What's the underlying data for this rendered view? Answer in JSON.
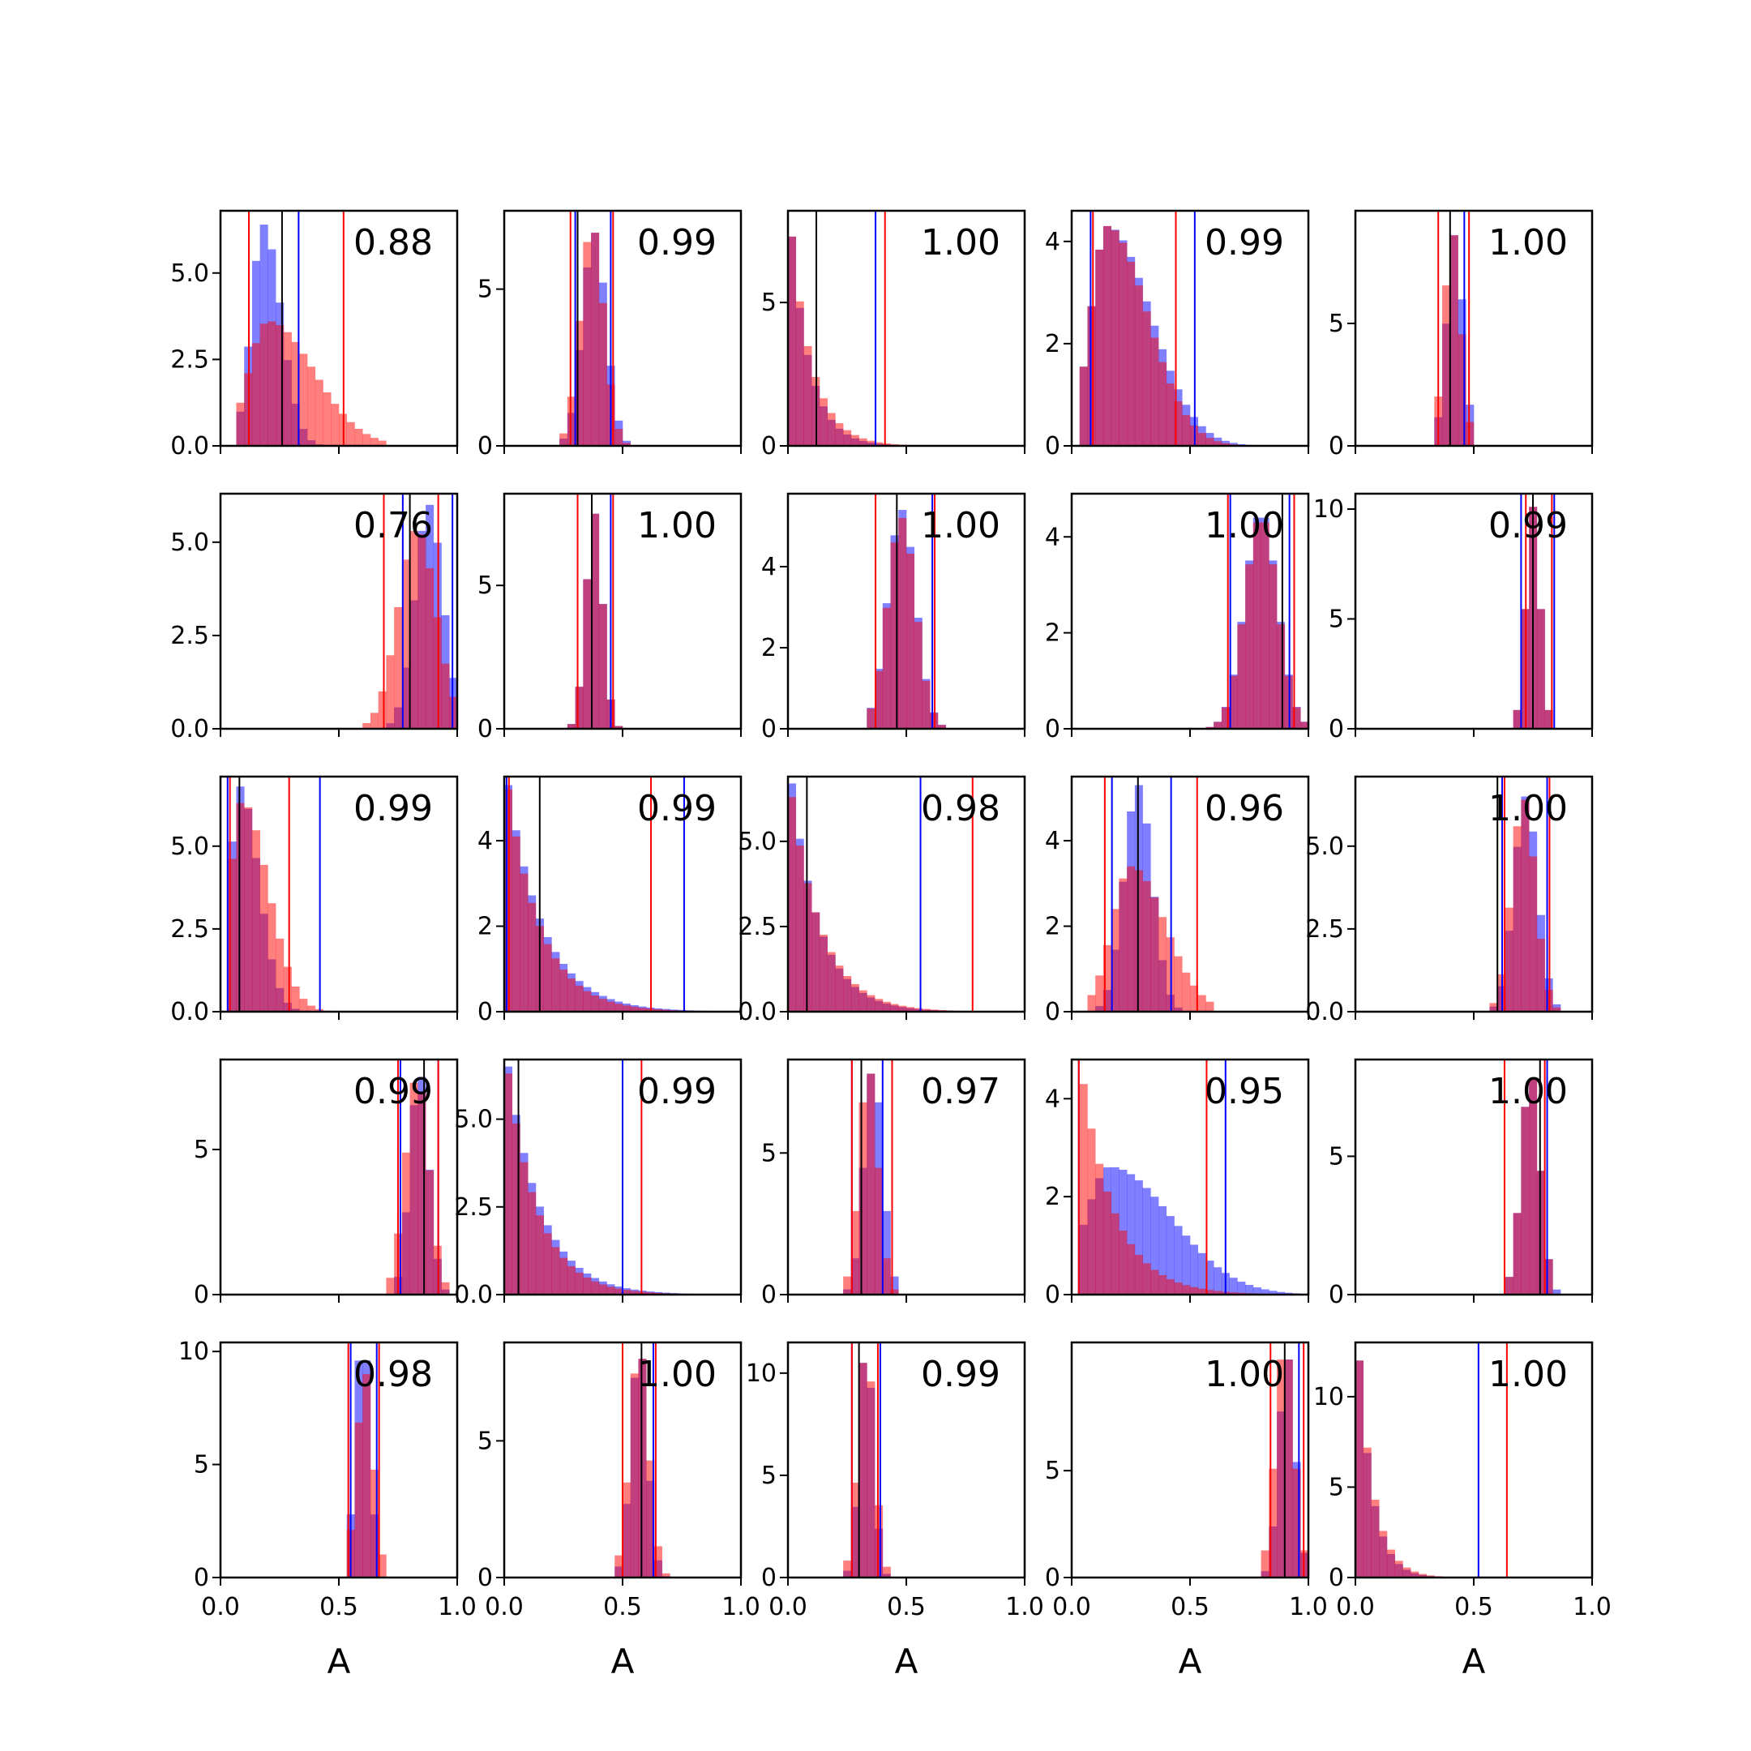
{
  "chart_data": {
    "type": "histogram-grid",
    "rows": 5,
    "cols": 5,
    "xlim": [
      0,
      1
    ],
    "xticks": [
      "0.0",
      "0.5",
      "1.0"
    ],
    "xlabel": "A",
    "colors": {
      "blue": "#0000ff",
      "red": "#ff0000",
      "black": "#000000",
      "blue_fill": "#7878f5",
      "red_fill": "#ff7a7a"
    },
    "panels": [
      {
        "annot": "0.88",
        "ymax": 6.8,
        "yticks": [
          "0.0",
          "2.5",
          "5.0"
        ],
        "ytick_vals": [
          0,
          2.5,
          5
        ],
        "blue": {
          "dist": "skew",
          "mu": 0.18,
          "sd": 0.05,
          "skew": 0.5,
          "lo": 0.08,
          "hi": 0.5,
          "peak": 6.4
        },
        "red": {
          "dist": "skew",
          "mu": 0.2,
          "sd": 0.08,
          "skew": 1.4,
          "lo": 0.06,
          "hi": 0.7,
          "peak": 3.6
        },
        "vlines": {
          "blue": [
            0.12,
            0.33
          ],
          "red": [
            0.12,
            0.52
          ],
          "black": [
            0.26
          ]
        }
      },
      {
        "annot": "0.99",
        "ymax": 7.5,
        "yticks": [
          "0",
          "5"
        ],
        "ytick_vals": [
          0,
          5
        ],
        "blue": {
          "dist": "normal",
          "mu": 0.38,
          "sd": 0.05,
          "lo": 0.22,
          "hi": 0.6,
          "peak": 6.8
        },
        "red": {
          "dist": "normal",
          "mu": 0.37,
          "sd": 0.05,
          "lo": 0.22,
          "hi": 0.55,
          "peak": 6.8
        },
        "vlines": {
          "blue": [
            0.3,
            0.45
          ],
          "red": [
            0.28,
            0.46
          ],
          "black": [
            0.31
          ]
        }
      },
      {
        "annot": "1.00",
        "ymax": 8.2,
        "yticks": [
          "0",
          "5"
        ],
        "ytick_vals": [
          0,
          5
        ],
        "blue": {
          "dist": "exp",
          "scale": 0.08,
          "lo": 0.0,
          "hi": 0.75,
          "peak": 7.3
        },
        "red": {
          "dist": "exp",
          "scale": 0.09,
          "lo": 0.0,
          "hi": 0.8,
          "peak": 7.3
        },
        "vlines": {
          "blue": [
            0.37
          ],
          "red": [
            0.41
          ],
          "black": [
            0.12
          ]
        }
      },
      {
        "annot": "0.99",
        "ymax": 4.6,
        "yticks": [
          "0",
          "2",
          "4"
        ],
        "ytick_vals": [
          0,
          2,
          4
        ],
        "blue": {
          "dist": "skew",
          "mu": 0.15,
          "sd": 0.07,
          "skew": 1.6,
          "lo": 0.05,
          "hi": 0.95,
          "peak": 4.3
        },
        "red": {
          "dist": "skew",
          "mu": 0.15,
          "sd": 0.07,
          "skew": 1.4,
          "lo": 0.05,
          "hi": 0.8,
          "peak": 4.3
        },
        "vlines": {
          "blue": [
            0.08,
            0.52
          ],
          "red": [
            0.09,
            0.44
          ],
          "black": []
        }
      },
      {
        "annot": "1.00",
        "ymax": 9.6,
        "yticks": [
          "0",
          "5"
        ],
        "ytick_vals": [
          0,
          5
        ],
        "blue": {
          "dist": "normal",
          "mu": 0.42,
          "sd": 0.035,
          "lo": 0.34,
          "hi": 0.5,
          "peak": 8.6
        },
        "red": {
          "dist": "normal",
          "mu": 0.41,
          "sd": 0.035,
          "lo": 0.34,
          "hi": 0.5,
          "peak": 8.6
        },
        "vlines": {
          "blue": [
            0.46
          ],
          "red": [
            0.35,
            0.48
          ],
          "black": [
            0.4
          ]
        }
      },
      {
        "annot": "0.76",
        "ymax": 6.3,
        "yticks": [
          "0.0",
          "2.5",
          "5.0"
        ],
        "ytick_vals": [
          0,
          2.5,
          5
        ],
        "blue": {
          "dist": "normal",
          "mu": 0.88,
          "sd": 0.06,
          "lo": 0.7,
          "hi": 1.0,
          "peak": 6.0
        },
        "red": {
          "dist": "normal",
          "mu": 0.83,
          "sd": 0.08,
          "lo": 0.6,
          "hi": 1.0,
          "peak": 5.3
        },
        "vlines": {
          "blue": [
            0.77,
            0.98
          ],
          "red": [
            0.69,
            0.92
          ],
          "black": [
            0.8
          ]
        }
      },
      {
        "annot": "1.00",
        "ymax": 8.2,
        "yticks": [
          "0",
          "5"
        ],
        "ytick_vals": [
          0,
          5
        ],
        "blue": {
          "dist": "normal",
          "mu": 0.38,
          "sd": 0.035,
          "lo": 0.26,
          "hi": 0.5,
          "peak": 7.5
        },
        "red": {
          "dist": "normal",
          "mu": 0.38,
          "sd": 0.035,
          "lo": 0.26,
          "hi": 0.52,
          "peak": 7.5
        },
        "vlines": {
          "blue": [
            0.31,
            0.45
          ],
          "red": [
            0.31,
            0.46
          ],
          "black": [
            0.37
          ]
        }
      },
      {
        "annot": "1.00",
        "ymax": 5.8,
        "yticks": [
          "0",
          "2",
          "4"
        ],
        "ytick_vals": [
          0,
          2,
          4
        ],
        "blue": {
          "dist": "normal",
          "mu": 0.48,
          "sd": 0.06,
          "lo": 0.33,
          "hi": 0.7,
          "peak": 5.4
        },
        "red": {
          "dist": "normal",
          "mu": 0.48,
          "sd": 0.06,
          "lo": 0.33,
          "hi": 0.72,
          "peak": 5.2
        },
        "vlines": {
          "blue": [
            0.37,
            0.61
          ],
          "red": [
            0.37,
            0.62
          ],
          "black": [
            0.46
          ]
        }
      },
      {
        "annot": "1.00",
        "ymax": 4.9,
        "yticks": [
          "0",
          "2",
          "4"
        ],
        "ytick_vals": [
          0,
          2,
          4
        ],
        "blue": {
          "dist": "normal",
          "mu": 0.8,
          "sd": 0.07,
          "lo": 0.55,
          "hi": 1.0,
          "peak": 4.4
        },
        "red": {
          "dist": "normal",
          "mu": 0.8,
          "sd": 0.07,
          "lo": 0.55,
          "hi": 1.0,
          "peak": 4.3
        },
        "vlines": {
          "blue": [
            0.67,
            0.92
          ],
          "red": [
            0.66,
            0.94
          ],
          "black": [
            0.89
          ]
        }
      },
      {
        "annot": "0.99",
        "ymax": 10.7,
        "yticks": [
          "0",
          "5",
          "10"
        ],
        "ytick_vals": [
          0,
          5,
          10
        ],
        "blue": {
          "dist": "normal",
          "mu": 0.75,
          "sd": 0.03,
          "lo": 0.66,
          "hi": 0.86,
          "peak": 10.1
        },
        "red": {
          "dist": "normal",
          "mu": 0.75,
          "sd": 0.03,
          "lo": 0.66,
          "hi": 0.86,
          "peak": 10.1
        },
        "vlines": {
          "blue": [
            0.7,
            0.84
          ],
          "red": [
            0.72,
            0.83
          ],
          "black": [
            0.75
          ]
        }
      },
      {
        "annot": "0.99",
        "ymax": 7.1,
        "yticks": [
          "0.0",
          "2.5",
          "5.0"
        ],
        "ytick_vals": [
          0,
          2.5,
          5
        ],
        "blue": {
          "dist": "skew",
          "mu": 0.08,
          "sd": 0.04,
          "skew": 1.0,
          "lo": 0.02,
          "hi": 1.0,
          "peak": 6.8
        },
        "red": {
          "dist": "skew",
          "mu": 0.09,
          "sd": 0.05,
          "skew": 1.2,
          "lo": 0.02,
          "hi": 0.5,
          "peak": 6.3
        },
        "vlines": {
          "blue": [
            0.03,
            0.42
          ],
          "red": [
            0.04,
            0.29
          ],
          "black": [
            0.08
          ]
        }
      },
      {
        "annot": "0.99",
        "ymax": 5.5,
        "yticks": [
          "0",
          "2",
          "4"
        ],
        "ytick_vals": [
          0,
          2,
          4
        ],
        "blue": {
          "dist": "exp",
          "scale": 0.15,
          "lo": 0.0,
          "hi": 1.0,
          "peak": 5.3
        },
        "red": {
          "dist": "exp",
          "scale": 0.14,
          "lo": 0.0,
          "hi": 1.0,
          "peak": 5.2
        },
        "vlines": {
          "blue": [
            0.01,
            0.76
          ],
          "red": [
            0.02,
            0.62
          ],
          "black": [
            0.15
          ]
        }
      },
      {
        "annot": "0.98",
        "ymax": 6.9,
        "yticks": [
          "0.0",
          "2.5",
          "5.0"
        ],
        "ytick_vals": [
          0,
          2.5,
          5
        ],
        "blue": {
          "dist": "exp",
          "scale": 0.12,
          "lo": 0.0,
          "hi": 1.0,
          "peak": 6.7
        },
        "red": {
          "dist": "exp",
          "scale": 0.13,
          "lo": 0.0,
          "hi": 1.0,
          "peak": 6.3
        },
        "vlines": {
          "blue": [
            0.56
          ],
          "red": [
            0.78
          ],
          "black": [
            0.08
          ]
        }
      },
      {
        "annot": "0.96",
        "ymax": 5.5,
        "yticks": [
          "0",
          "2",
          "4"
        ],
        "ytick_vals": [
          0,
          2,
          4
        ],
        "blue": {
          "dist": "normal",
          "mu": 0.28,
          "sd": 0.06,
          "lo": 0.1,
          "hi": 0.55,
          "peak": 5.3
        },
        "red": {
          "dist": "skew",
          "mu": 0.25,
          "sd": 0.08,
          "skew": 0.8,
          "lo": 0.08,
          "hi": 0.6,
          "peak": 3.4
        },
        "vlines": {
          "blue": [
            0.17,
            0.42
          ],
          "red": [
            0.14,
            0.53
          ],
          "black": [
            0.28
          ]
        }
      },
      {
        "annot": "1.00",
        "ymax": 7.1,
        "yticks": [
          "0.0",
          "2.5",
          "5.0"
        ],
        "ytick_vals": [
          0,
          2.5,
          5
        ],
        "blue": {
          "dist": "normal",
          "mu": 0.72,
          "sd": 0.05,
          "lo": 0.58,
          "hi": 0.86,
          "peak": 6.5
        },
        "red": {
          "dist": "normal",
          "mu": 0.71,
          "sd": 0.05,
          "lo": 0.58,
          "hi": 0.86,
          "peak": 6.4
        },
        "vlines": {
          "blue": [
            0.62,
            0.81
          ],
          "red": [
            0.63,
            0.82
          ],
          "black": [
            0.6
          ]
        }
      },
      {
        "annot": "0.99",
        "ymax": 8.1,
        "yticks": [
          "0",
          "5"
        ],
        "ytick_vals": [
          0,
          5
        ],
        "blue": {
          "dist": "normal",
          "mu": 0.84,
          "sd": 0.04,
          "lo": 0.74,
          "hi": 0.96,
          "peak": 7.5
        },
        "red": {
          "dist": "normal",
          "mu": 0.83,
          "sd": 0.05,
          "lo": 0.7,
          "hi": 0.96,
          "peak": 7.3
        },
        "vlines": {
          "blue": [
            0.76,
            0.92
          ],
          "red": [
            0.75,
            0.92
          ],
          "black": [
            0.86
          ]
        }
      },
      {
        "annot": "0.99",
        "ymax": 6.7,
        "yticks": [
          "0.0",
          "2.5",
          "5.0"
        ],
        "ytick_vals": [
          0,
          2.5,
          5
        ],
        "blue": {
          "dist": "exp",
          "scale": 0.14,
          "lo": 0.0,
          "hi": 0.9,
          "peak": 6.5
        },
        "red": {
          "dist": "exp",
          "scale": 0.13,
          "lo": 0.0,
          "hi": 1.0,
          "peak": 6.3
        },
        "vlines": {
          "blue": [
            0.5
          ],
          "red": [
            0.58
          ],
          "black": [
            0.06
          ]
        }
      },
      {
        "annot": "0.97",
        "ymax": 8.3,
        "yticks": [
          "0",
          "5"
        ],
        "ytick_vals": [
          0,
          5
        ],
        "blue": {
          "dist": "normal",
          "mu": 0.36,
          "sd": 0.04,
          "lo": 0.24,
          "hi": 0.48,
          "peak": 7.8
        },
        "red": {
          "dist": "normal",
          "mu": 0.34,
          "sd": 0.04,
          "lo": 0.22,
          "hi": 0.5,
          "peak": 7.8
        },
        "vlines": {
          "blue": [
            0.27,
            0.4
          ],
          "red": [
            0.27,
            0.44
          ],
          "black": [
            0.31
          ]
        }
      },
      {
        "annot": "0.95",
        "ymax": 4.8,
        "yticks": [
          "0",
          "2",
          "4"
        ],
        "ytick_vals": [
          0,
          2,
          4
        ],
        "blue": {
          "dist": "skew",
          "mu": 0.16,
          "sd": 0.1,
          "skew": 1.6,
          "lo": 0.02,
          "hi": 1.0,
          "peak": 2.6
        },
        "red": {
          "dist": "exp",
          "scale": 0.14,
          "lo": 0.02,
          "hi": 0.9,
          "peak": 4.3
        },
        "vlines": {
          "blue": [
            0.03,
            0.65
          ],
          "red": [
            0.03,
            0.57
          ],
          "black": []
        }
      },
      {
        "annot": "1.00",
        "ymax": 8.5,
        "yticks": [
          "0",
          "5"
        ],
        "ytick_vals": [
          0,
          5
        ],
        "blue": {
          "dist": "normal",
          "mu": 0.74,
          "sd": 0.04,
          "lo": 0.62,
          "hi": 0.86,
          "peak": 7.8
        },
        "red": {
          "dist": "normal",
          "mu": 0.74,
          "sd": 0.04,
          "lo": 0.62,
          "hi": 0.84,
          "peak": 7.8
        },
        "vlines": {
          "blue": [
            0.81
          ],
          "red": [
            0.63,
            0.8
          ],
          "black": [
            0.78
          ]
        }
      },
      {
        "annot": "0.98",
        "ymax": 10.4,
        "yticks": [
          "0",
          "5",
          "10"
        ],
        "ytick_vals": [
          0,
          5,
          10
        ],
        "blue": {
          "dist": "normal",
          "mu": 0.6,
          "sd": 0.03,
          "lo": 0.52,
          "hi": 0.68,
          "peak": 9.6
        },
        "red": {
          "dist": "normal",
          "mu": 0.61,
          "sd": 0.035,
          "lo": 0.52,
          "hi": 0.7,
          "peak": 9.0
        },
        "vlines": {
          "blue": [
            0.55,
            0.66
          ],
          "red": [
            0.54,
            0.67
          ],
          "black": []
        }
      },
      {
        "annot": "1.00",
        "ymax": 8.6,
        "yticks": [
          "0",
          "5"
        ],
        "ytick_vals": [
          0,
          5
        ],
        "blue": {
          "dist": "normal",
          "mu": 0.57,
          "sd": 0.035,
          "lo": 0.46,
          "hi": 0.7,
          "peak": 8.0
        },
        "red": {
          "dist": "normal",
          "mu": 0.57,
          "sd": 0.04,
          "lo": 0.46,
          "hi": 0.7,
          "peak": 8.0
        },
        "vlines": {
          "blue": [
            0.5,
            0.63
          ],
          "red": [
            0.5,
            0.64
          ],
          "black": [
            0.58
          ]
        }
      },
      {
        "annot": "0.99",
        "ymax": 11.5,
        "yticks": [
          "0",
          "5",
          "10"
        ],
        "ytick_vals": [
          0,
          5,
          10
        ],
        "blue": {
          "dist": "normal",
          "mu": 0.33,
          "sd": 0.03,
          "lo": 0.24,
          "hi": 0.44,
          "peak": 10.5
        },
        "red": {
          "dist": "normal",
          "mu": 0.33,
          "sd": 0.035,
          "lo": 0.24,
          "hi": 0.44,
          "peak": 10.5
        },
        "vlines": {
          "blue": [
            0.27,
            0.39
          ],
          "red": [
            0.27,
            0.38
          ],
          "black": [
            0.3
          ]
        }
      },
      {
        "annot": "1.00",
        "ymax": 11.0,
        "yticks": [
          "0",
          "5"
        ],
        "ytick_vals": [
          0,
          5
        ],
        "blue": {
          "dist": "normal",
          "mu": 0.91,
          "sd": 0.035,
          "lo": 0.8,
          "hi": 1.0,
          "peak": 10.2
        },
        "red": {
          "dist": "normal",
          "mu": 0.9,
          "sd": 0.04,
          "lo": 0.8,
          "hi": 1.0,
          "peak": 10.2
        },
        "vlines": {
          "blue": [
            0.96
          ],
          "red": [
            0.84,
            0.98
          ],
          "black": [
            0.9
          ]
        }
      },
      {
        "annot": "1.00",
        "ymax": 13.0,
        "yticks": [
          "0",
          "5",
          "10"
        ],
        "ytick_vals": [
          0,
          5,
          10
        ],
        "blue": {
          "dist": "exp",
          "scale": 0.06,
          "lo": 0.0,
          "hi": 1.0,
          "peak": 12.0
        },
        "red": {
          "dist": "exp",
          "scale": 0.065,
          "lo": 0.0,
          "hi": 1.0,
          "peak": 12.0
        },
        "vlines": {
          "blue": [
            0.52
          ],
          "red": [
            0.64
          ],
          "black": []
        }
      }
    ]
  }
}
